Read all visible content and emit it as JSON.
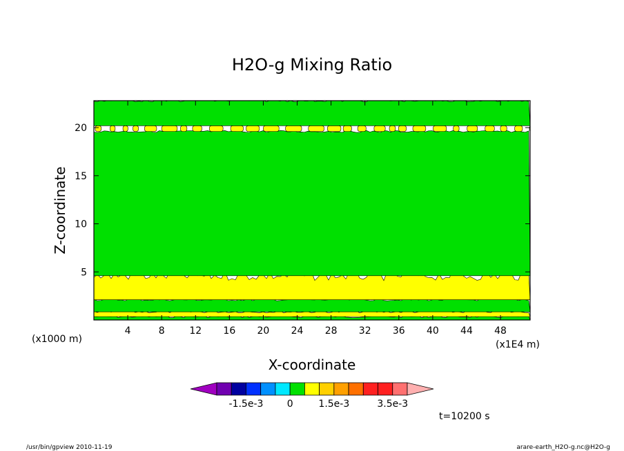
{
  "chart_data": {
    "type": "heatmap",
    "title": "H2O-g Mixing Ratio",
    "xlabel": "X-coordinate",
    "ylabel": "Z-coordinate",
    "x_unit_left": "(x1000 m)",
    "x_unit_right": "(x1E4 m)",
    "xlim": [
      0,
      51.5
    ],
    "ylim": [
      0,
      22.8
    ],
    "x_ticks": [
      4,
      8,
      12,
      16,
      20,
      24,
      28,
      32,
      36,
      40,
      44,
      48
    ],
    "y_ticks": [
      5,
      10,
      15,
      20
    ],
    "grid": false,
    "field_bands": [
      {
        "z_from": 0.0,
        "z_to": 0.35,
        "color": "#00e000",
        "level": "0 to 5e-4"
      },
      {
        "z_from": 0.35,
        "z_to": 0.85,
        "color": "#ffff00",
        "level": "5e-4 to 1e-3"
      },
      {
        "z_from": 0.85,
        "z_to": 2.1,
        "color": "#00e000",
        "level": "0 to 5e-4"
      },
      {
        "z_from": 2.1,
        "z_to": 4.6,
        "color": "#ffff00",
        "level": "5e-4 to 1e-3"
      },
      {
        "z_from": 4.6,
        "z_to": 19.6,
        "color": "#00e000",
        "level": "0 to 5e-4"
      },
      {
        "z_from": 19.6,
        "z_to": 20.2,
        "color": "#ffff00",
        "level": "5e-4 to 1e-3",
        "patchy": true
      },
      {
        "z_from": 20.2,
        "z_to": 22.8,
        "color": "#00e000",
        "level": "0 to 5e-4"
      }
    ],
    "colorbar": {
      "colors": [
        "#a000c0",
        "#7000b0",
        "#0000a0",
        "#0030ff",
        "#0090ff",
        "#00e8ff",
        "#00e000",
        "#ffff00",
        "#ffd000",
        "#ffa000",
        "#ff7000",
        "#ff2020",
        "#ff2020",
        "#ff7070",
        "#ffb0b0"
      ],
      "labels": [
        "-1.5e-3",
        "0",
        "1.5e-3",
        "3.5e-3"
      ]
    },
    "time_label": "t=10200 s"
  },
  "footer": {
    "left": "/usr/bin/gpview  2010-11-19",
    "right": "arare-earth_H2O-g.nc@H2O-g"
  }
}
